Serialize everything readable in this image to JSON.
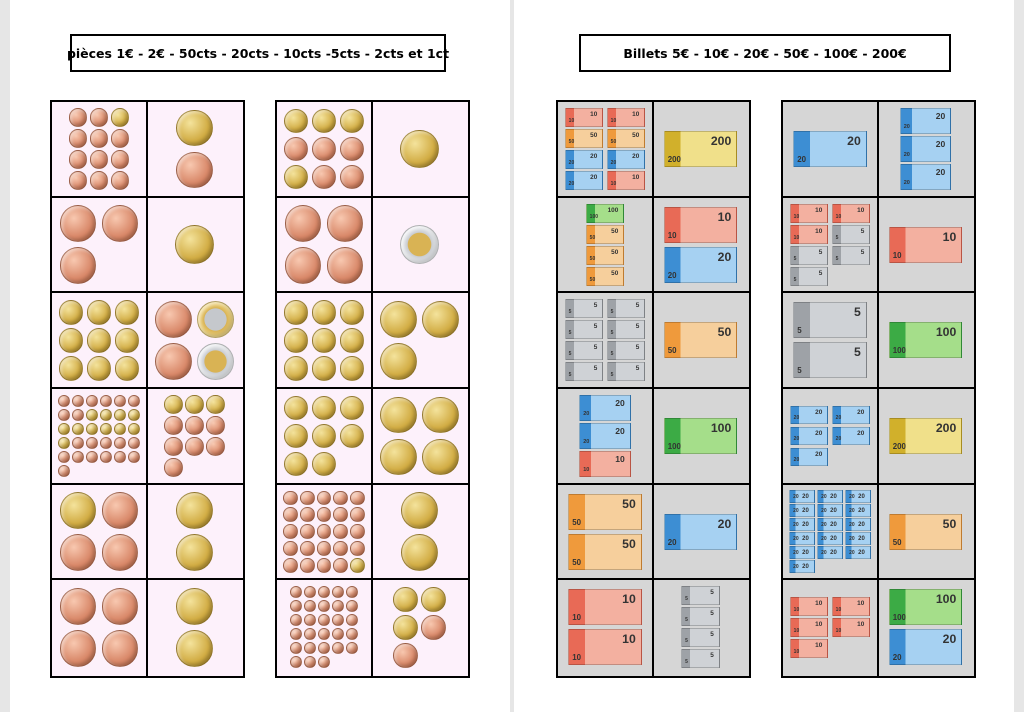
{
  "left_page": {
    "title": "pièces 1€ - 2€ - 50cts - 20cts - 10cts -5cts - 2cts et 1ct"
  },
  "right_page": {
    "title": "Billets 5€ - 10€ - 20€ - 50€ - 100€ - 200€"
  },
  "colors": {
    "coin_card_bg": "#fdf1fb",
    "note_card_bg": "#d6d6d6",
    "copper": "#d9896a",
    "gold": "#d2ad45"
  },
  "coin_grids": [
    [
      [
        "c",
        "c",
        "g",
        "c",
        "c",
        "c",
        "c",
        "c",
        "c",
        "c",
        "c",
        "c"
      ],
      [
        "g",
        "c"
      ],
      [
        "c",
        "c",
        "c"
      ],
      [
        "g"
      ],
      [
        "g",
        "g",
        "g",
        "g",
        "g",
        "g",
        "g",
        "g",
        "g"
      ],
      [
        "c",
        "B",
        "c",
        "b"
      ],
      [
        "c",
        "c",
        "c",
        "c",
        "c",
        "c",
        "c",
        "c",
        "g",
        "g",
        "g",
        "g",
        "g",
        "g",
        "g",
        "g",
        "g",
        "g",
        "g",
        "c",
        "c",
        "c",
        "c",
        "c",
        "c",
        "c",
        "c",
        "c",
        "c",
        "c",
        "c"
      ],
      [
        "g",
        "g",
        "g",
        "c",
        "c",
        "c",
        "c",
        "c",
        "c",
        "c"
      ],
      [
        "g",
        "c",
        "c",
        "c"
      ],
      [
        "g",
        "g"
      ],
      [
        "c",
        "c",
        "c",
        "c"
      ],
      [
        "g",
        "g"
      ]
    ],
    [
      [
        "g",
        "g",
        "g",
        "c",
        "c",
        "c",
        "g",
        "c",
        "c"
      ],
      [
        "g"
      ],
      [
        "c",
        "c",
        "c",
        "c"
      ],
      [
        "b"
      ],
      [
        "g",
        "g",
        "g",
        "g",
        "g",
        "g",
        "g",
        "g",
        "g"
      ],
      [
        "g",
        "g",
        "g"
      ],
      [
        "g",
        "g",
        "g",
        "g",
        "g",
        "g",
        "g",
        "g"
      ],
      [
        "g",
        "g",
        "g",
        "g"
      ],
      [
        "c",
        "c",
        "c",
        "c",
        "c",
        "c",
        "c",
        "c",
        "c",
        "c",
        "c",
        "c",
        "c",
        "c",
        "c",
        "c",
        "c",
        "c",
        "c",
        "c",
        "c",
        "c",
        "c",
        "c",
        "g"
      ],
      [
        "g",
        "g"
      ],
      [
        "c",
        "c",
        "c",
        "c",
        "c",
        "c",
        "c",
        "c",
        "c",
        "c",
        "c",
        "c",
        "c",
        "c",
        "c",
        "c",
        "c",
        "c",
        "c",
        "c",
        "c",
        "c",
        "c",
        "c",
        "c",
        "c",
        "c",
        "c"
      ],
      [
        "g",
        "g",
        "g",
        "c",
        "c"
      ]
    ]
  ],
  "note_grids": [
    [
      [
        "10",
        "10",
        "50",
        "50",
        "20",
        "20",
        "20",
        "10"
      ],
      [
        "200"
      ],
      [
        "100",
        "50",
        "50",
        "50"
      ],
      [
        "10",
        "20"
      ],
      [
        "5",
        "5",
        "5",
        "5",
        "5",
        "5",
        "5",
        "5"
      ],
      [
        "50"
      ],
      [
        "20",
        "20",
        "10"
      ],
      [
        "100"
      ],
      [
        "50",
        "50"
      ],
      [
        "20"
      ],
      [
        "10",
        "10"
      ],
      [
        "5",
        "5",
        "5",
        "5"
      ]
    ],
    [
      [
        "20"
      ],
      [
        "20",
        "20",
        "20"
      ],
      [
        "10",
        "10",
        "10",
        "5",
        "5",
        "5",
        "5"
      ],
      [
        "10"
      ],
      [
        "5",
        "5"
      ],
      [
        "100"
      ],
      [
        "20",
        "20",
        "20",
        "20",
        "20"
      ],
      [
        "200"
      ],
      [
        "20",
        "20",
        "20",
        "20",
        "20",
        "20",
        "20",
        "20",
        "20",
        "20",
        "20",
        "20",
        "20",
        "20",
        "20",
        "20"
      ],
      [
        "50"
      ],
      [
        "10",
        "10",
        "10",
        "10",
        "10"
      ],
      [
        "100",
        "20"
      ]
    ]
  ]
}
